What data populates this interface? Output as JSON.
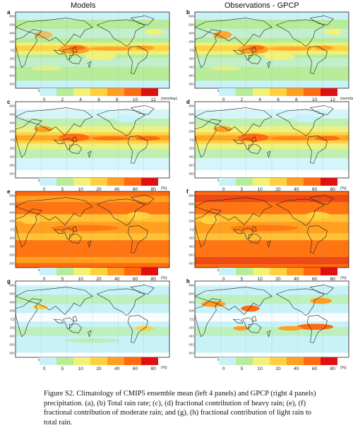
{
  "columns": {
    "left": "Models",
    "right": "Observations - GPCP"
  },
  "panels": [
    {
      "label": "a"
    },
    {
      "label": "b"
    },
    {
      "label": "c"
    },
    {
      "label": "d"
    },
    {
      "label": "e"
    },
    {
      "label": "f"
    },
    {
      "label": "g"
    },
    {
      "label": "h"
    }
  ],
  "longitude_ticks": [
    "60E",
    "120E",
    "180",
    "120W",
    "60W"
  ],
  "latitude_ticks": [
    "80N",
    "60N",
    "40N",
    "20N",
    "EQ",
    "20S",
    "40S",
    "60S",
    "80S"
  ],
  "colorbar_rain": {
    "ticks": [
      "0",
      "2",
      "4",
      "6",
      "8",
      "10",
      "12"
    ],
    "unit": "(mm/day)",
    "colors": [
      "#c8f2f8",
      "#b8ec9a",
      "#f2f278",
      "#ffd040",
      "#ffa020",
      "#ff6a10",
      "#e01010"
    ]
  },
  "colorbar_pct": {
    "ticks": [
      "0",
      "5",
      "10",
      "20",
      "40",
      "60",
      "80"
    ],
    "unit": "(%)",
    "colors": [
      "#c8f2f8",
      "#b8ec9a",
      "#f2f278",
      "#ffd040",
      "#ffa020",
      "#ff6a10",
      "#e01010"
    ]
  },
  "caption": "Figure S2. Climatology of CMIP5 ensemble mean (left 4 panels) and GPCP (right 4 panels) precipitation. (a), (b) Total rain rate; (c), (d) fractional contribution of heavy rain; (e), (f) fractional contribution of moderate rain; and (g), (h) fractional contribution of light rain to total rain."
}
